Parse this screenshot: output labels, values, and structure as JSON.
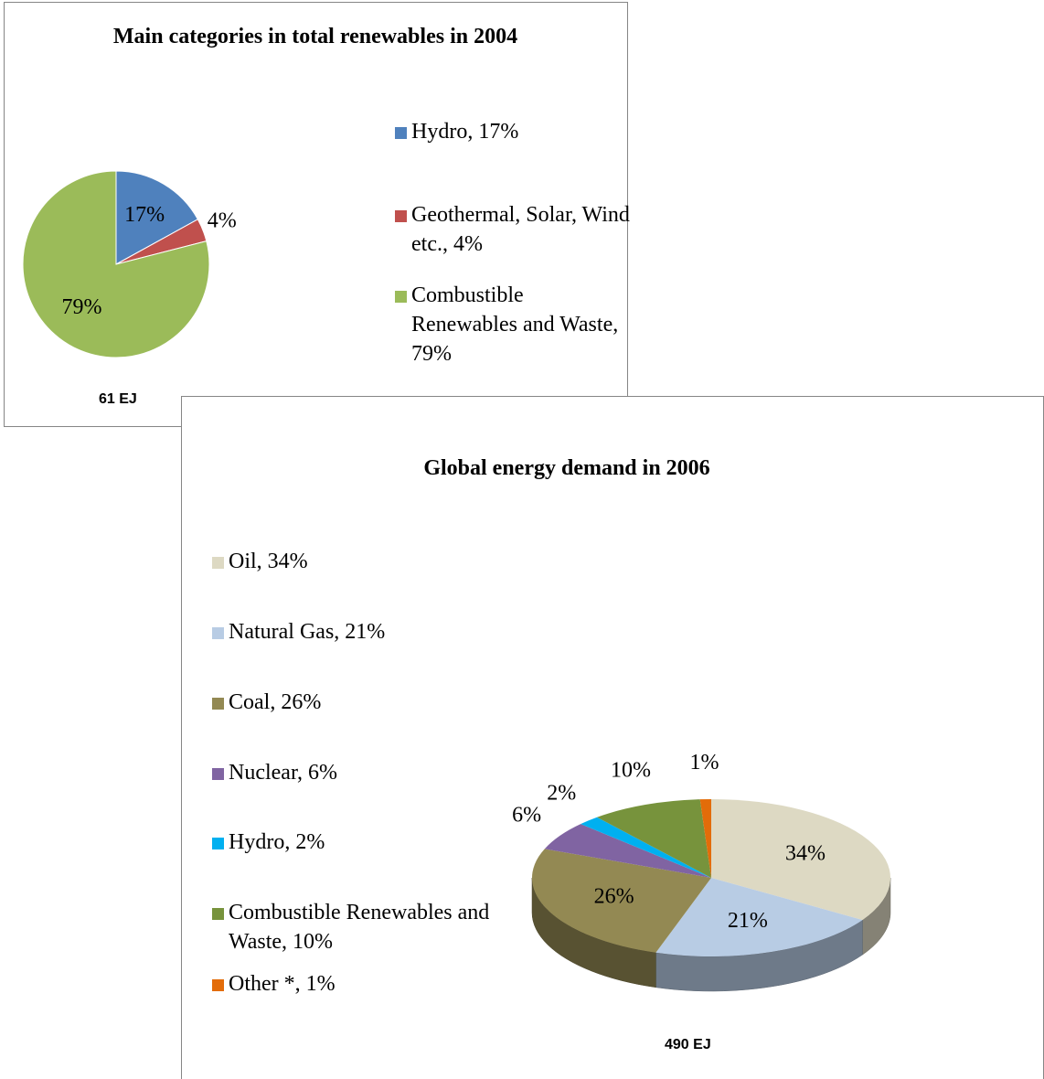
{
  "chart_data": [
    {
      "type": "pie",
      "title": "Main categories in total renewables in 2004",
      "categories": [
        "Hydro, 17%",
        "Geothermal, Solar, Wind etc., 4%",
        "Combustible Renewables and Waste, 79%"
      ],
      "values": [
        17,
        4,
        79
      ],
      "value_labels": [
        "17%",
        "4%",
        "79%"
      ],
      "colors": [
        "#4f81bd",
        "#c0504d",
        "#9bbb59"
      ],
      "annotation": "61 EJ",
      "legend": "right"
    },
    {
      "type": "pie3d",
      "title": "Global energy demand in 2006",
      "categories": [
        "Oil, 34%",
        "Natural Gas, 21%",
        "Coal, 26%",
        "Nuclear, 6%",
        "Hydro, 2%",
        "Combustible Renewables and Waste, 10%",
        "Other *, 1%"
      ],
      "values": [
        34,
        21,
        26,
        6,
        2,
        10,
        1
      ],
      "value_labels": [
        "34%",
        "21%",
        "26%",
        "6%",
        "2%",
        "10%",
        "1%"
      ],
      "colors": [
        "#ddd9c3",
        "#b8cce4",
        "#938953",
        "#8064a2",
        "#00b0f0",
        "#77933c",
        "#e36c09"
      ],
      "annotation": "490 EJ",
      "legend": "left"
    }
  ]
}
